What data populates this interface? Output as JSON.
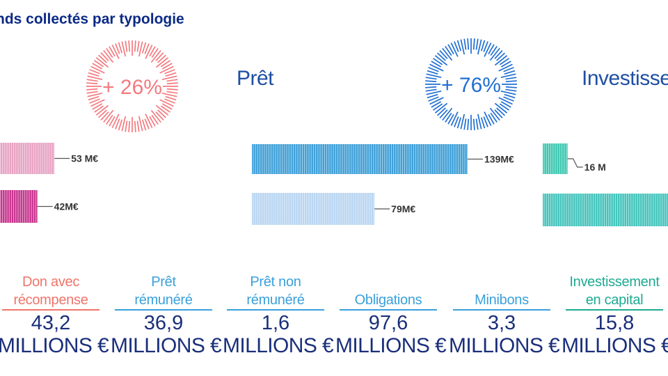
{
  "page_title": "nds collectés par typologie",
  "sections": [
    {
      "key": "don",
      "title": "",
      "growth": "+ 26%",
      "ring_color": "#f37a7f"
    },
    {
      "key": "pret",
      "title": "Prêt",
      "growth": "+ 76%",
      "ring_color": "#1f6fd1"
    },
    {
      "key": "investissement",
      "title": "Investisser",
      "growth": "",
      "ring_color": ""
    }
  ],
  "columns": [
    {
      "label_lines": [
        "Don avec",
        "récompense"
      ],
      "value": "43,2",
      "unit": "MILLIONS €",
      "color": "#f0746a"
    },
    {
      "label_lines": [
        "Prêt",
        "rémunéré"
      ],
      "value": "36,9",
      "unit": "MILLIONS €",
      "color": "#3aa0dc"
    },
    {
      "label_lines": [
        "Prêt non",
        "rémunéré"
      ],
      "value": "1,6",
      "unit": "MILLIONS €",
      "color": "#3aa0dc"
    },
    {
      "label_lines": [
        "Obligations"
      ],
      "value": "97,6",
      "unit": "MILLIONS €",
      "color": "#3aa0dc"
    },
    {
      "label_lines": [
        "Minibons"
      ],
      "value": "3,3",
      "unit": "MILLIONS €",
      "color": "#3aa0dc"
    },
    {
      "label_lines": [
        "Investissement",
        "en capital"
      ],
      "value": "15,8",
      "unit": "MILLIONS €",
      "color": "#1daa92"
    }
  ],
  "chart_data": [
    {
      "type": "bar",
      "title": "",
      "categories": [
        "",
        ""
      ],
      "values": [
        53,
        42
      ],
      "value_labels": [
        "53 M€",
        "42M€"
      ],
      "unit": "M€",
      "colors": [
        "#e7a3c3",
        "#c7358f"
      ]
    },
    {
      "type": "bar",
      "title": "Prêt",
      "categories": [
        "",
        ""
      ],
      "values": [
        139,
        79
      ],
      "value_labels": [
        "139M€",
        "79M€"
      ],
      "unit": "M€",
      "colors": [
        "#3e9fd7",
        "#b8d5f1"
      ]
    },
    {
      "type": "bar",
      "title": "Investisser",
      "categories": [
        "",
        ""
      ],
      "values": [
        16,
        null
      ],
      "value_labels": [
        "16 M",
        ""
      ],
      "unit": "M€",
      "colors": [
        "#3cc7b0",
        "#43c4bb"
      ]
    }
  ]
}
